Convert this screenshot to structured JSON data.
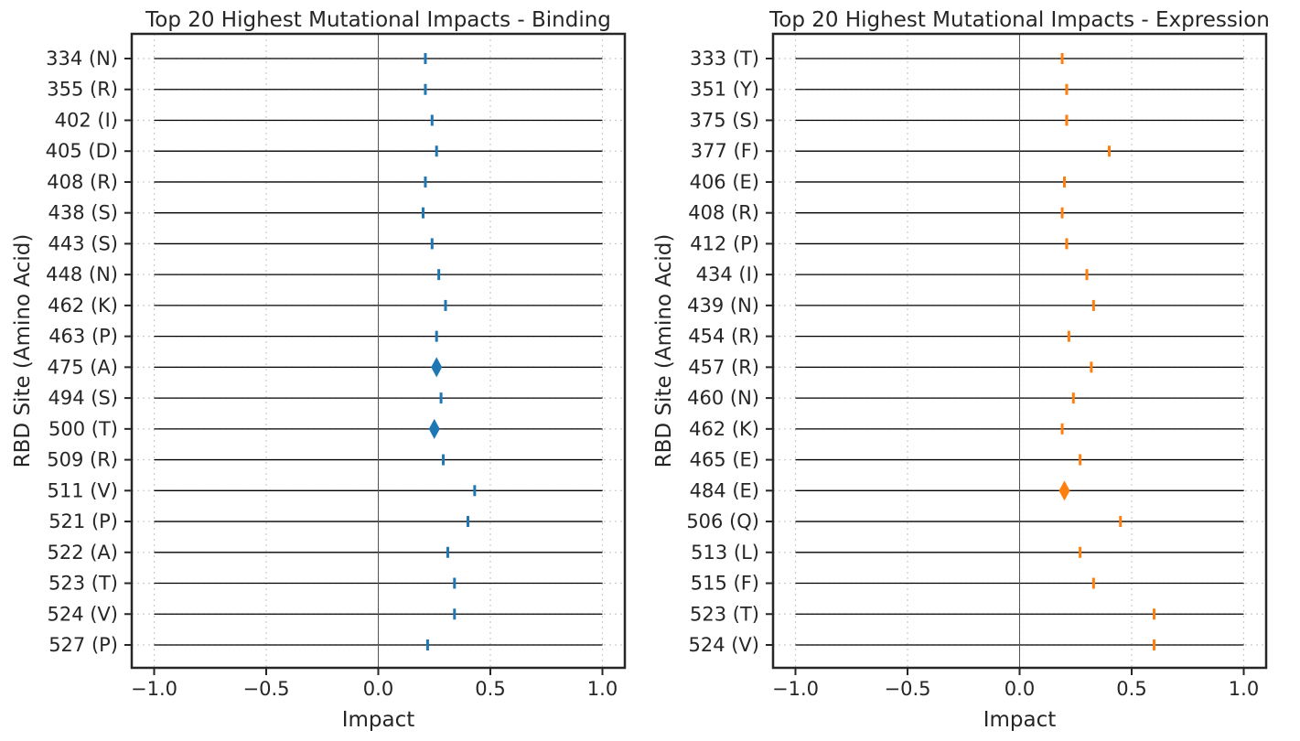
{
  "colors": {
    "binding": "#1f77b4",
    "expression": "#ff7f0e",
    "axis": "#262626",
    "grid": "#cccccc",
    "line": "#000000"
  },
  "chart_data": [
    {
      "type": "scatter",
      "title": "Top 20 Highest Mutational Impacts - Binding",
      "xlabel": "Impact",
      "ylabel": "RBD Site (Amino Acid)",
      "xlim": [
        -1.1,
        1.1
      ],
      "xticks": [
        -1.0,
        -0.5,
        0.0,
        0.5,
        1.0
      ],
      "xtick_labels": [
        "−1.0",
        "−0.5",
        "0.0",
        "0.5",
        "1.0"
      ],
      "grid": true,
      "reference_range": [
        -1.0,
        1.0
      ],
      "color": "#1f77b4",
      "categories": [
        "334 (N)",
        "355 (R)",
        "402 (I)",
        "405 (D)",
        "408 (R)",
        "438 (S)",
        "443 (S)",
        "448 (N)",
        "462 (K)",
        "463 (P)",
        "475 (A)",
        "494 (S)",
        "500 (T)",
        "509 (R)",
        "511 (V)",
        "521 (P)",
        "522 (A)",
        "523 (T)",
        "524 (V)",
        "527 (P)"
      ],
      "values": [
        0.21,
        0.21,
        0.24,
        0.26,
        0.21,
        0.2,
        0.24,
        0.27,
        0.3,
        0.26,
        0.26,
        0.28,
        0.25,
        0.29,
        0.43,
        0.4,
        0.31,
        0.34,
        0.34,
        0.22
      ],
      "markers": [
        "|",
        "|",
        "|",
        "|",
        "|",
        "|",
        "|",
        "|",
        "|",
        "|",
        "d",
        "|",
        "d",
        "|",
        "|",
        "|",
        "|",
        "|",
        "|",
        "|"
      ]
    },
    {
      "type": "scatter",
      "title": "Top 20 Highest Mutational Impacts - Expression",
      "xlabel": "Impact",
      "ylabel": "RBD Site (Amino Acid)",
      "xlim": [
        -1.1,
        1.1
      ],
      "xticks": [
        -1.0,
        -0.5,
        0.0,
        0.5,
        1.0
      ],
      "xtick_labels": [
        "−1.0",
        "−0.5",
        "0.0",
        "0.5",
        "1.0"
      ],
      "grid": true,
      "reference_range": [
        -1.0,
        1.0
      ],
      "color": "#ff7f0e",
      "categories": [
        "333 (T)",
        "351 (Y)",
        "375 (S)",
        "377 (F)",
        "406 (E)",
        "408 (R)",
        "412 (P)",
        "434 (I)",
        "439 (N)",
        "454 (R)",
        "457 (R)",
        "460 (N)",
        "462 (K)",
        "465 (E)",
        "484 (E)",
        "506 (Q)",
        "513 (L)",
        "515 (F)",
        "523 (T)",
        "524 (V)"
      ],
      "values": [
        0.19,
        0.21,
        0.21,
        0.4,
        0.2,
        0.19,
        0.21,
        0.3,
        0.33,
        0.22,
        0.32,
        0.24,
        0.19,
        0.27,
        0.2,
        0.45,
        0.27,
        0.33,
        0.6,
        0.6
      ],
      "markers": [
        "|",
        "|",
        "|",
        "|",
        "|",
        "|",
        "|",
        "|",
        "|",
        "|",
        "|",
        "|",
        "|",
        "|",
        "d",
        "|",
        "|",
        "|",
        "|",
        "|"
      ]
    }
  ]
}
